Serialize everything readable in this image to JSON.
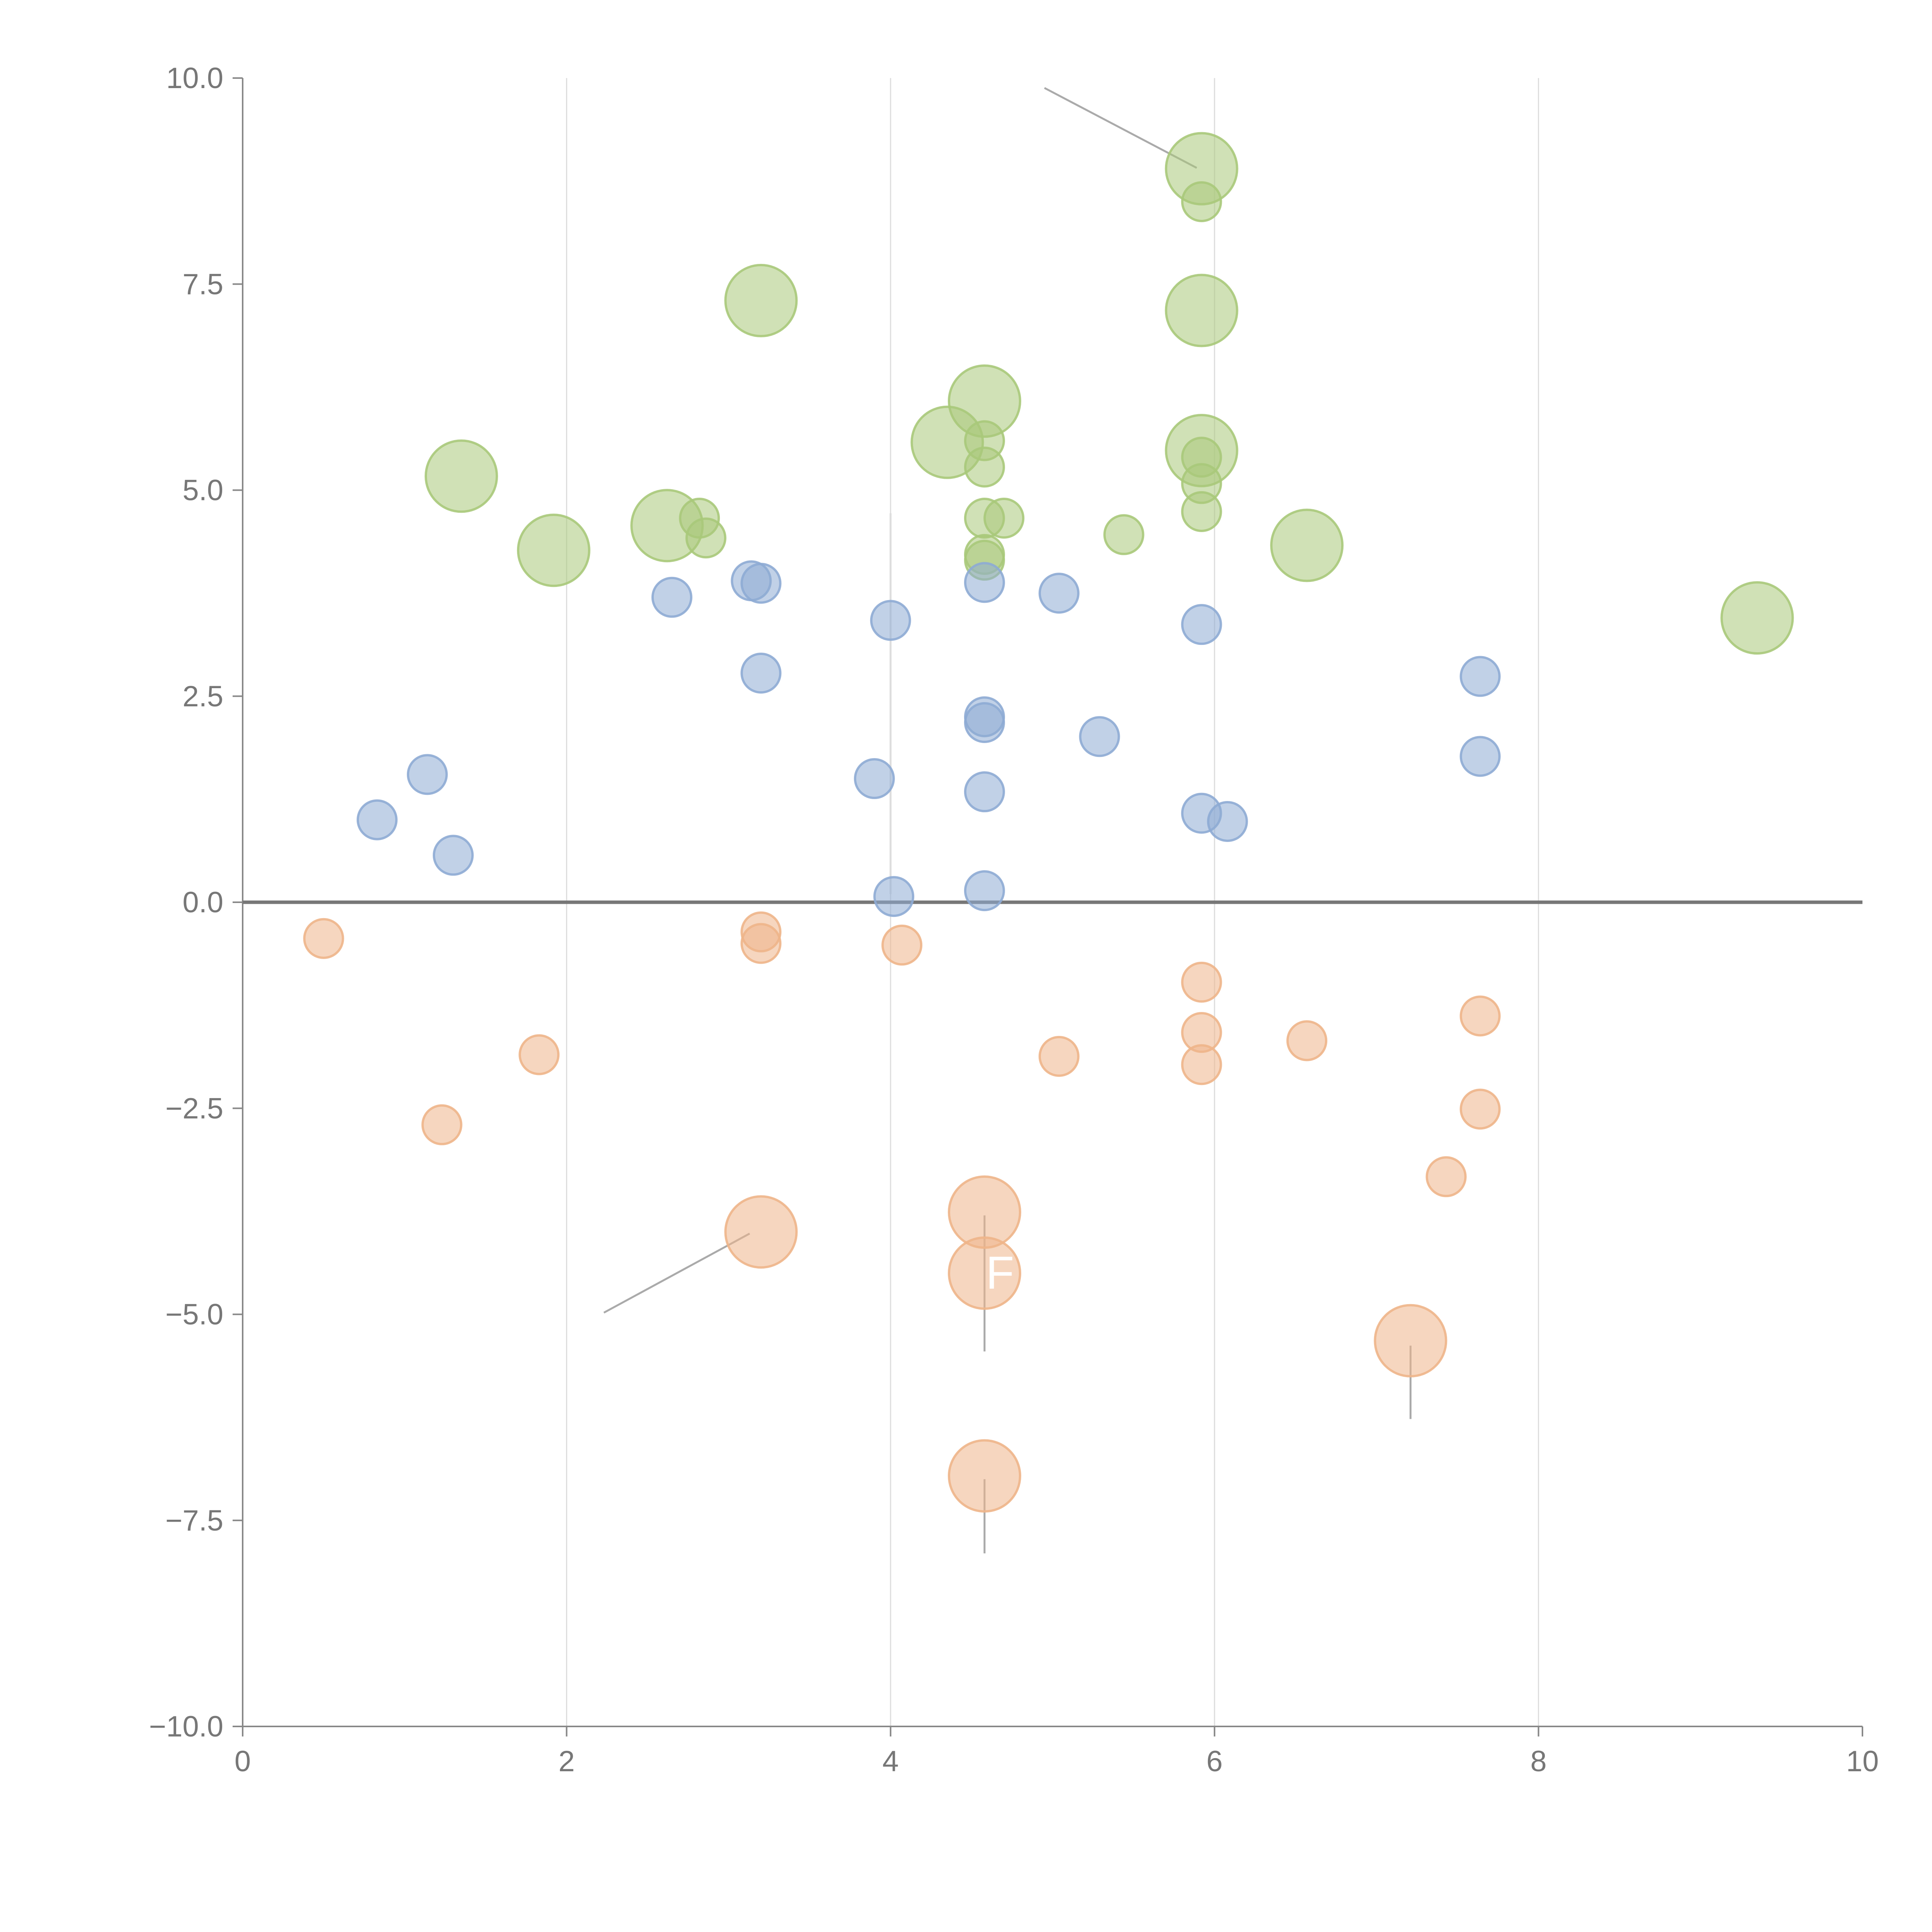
{
  "chart_data": {
    "type": "scatter",
    "title": "",
    "xlabel": "",
    "ylabel": "",
    "xlim": [
      0,
      10
    ],
    "ylim": [
      -10,
      10
    ],
    "x_ticks": [
      0,
      2,
      4,
      6,
      8,
      10
    ],
    "y_ticks": [
      -10,
      -7.5,
      -5,
      -2.5,
      0,
      2.5,
      5,
      7.5,
      10
    ],
    "x_tick_labels": [
      "0",
      "2",
      "4",
      "6",
      "8",
      "10"
    ],
    "y_tick_labels": [
      "−10.0",
      "−7.5",
      "−5.0",
      "−2.5",
      "0.0",
      "2.5",
      "5.0",
      "7.5",
      "10.0"
    ],
    "vertical_gridlines_at": [
      2,
      4,
      6,
      8
    ],
    "zero_line": 0,
    "series": [
      {
        "name": "green",
        "color": "#a9c97a",
        "points": [
          {
            "x": 5.92,
            "y": 8.9,
            "size": "large"
          },
          {
            "x": 5.92,
            "y": 8.5,
            "size": "small"
          },
          {
            "x": 3.2,
            "y": 7.3,
            "size": "large"
          },
          {
            "x": 5.92,
            "y": 7.18,
            "size": "large"
          },
          {
            "x": 4.58,
            "y": 6.08,
            "size": "large"
          },
          {
            "x": 4.35,
            "y": 5.58,
            "size": "large"
          },
          {
            "x": 4.58,
            "y": 5.6,
            "size": "small"
          },
          {
            "x": 5.92,
            "y": 5.48,
            "size": "large"
          },
          {
            "x": 5.92,
            "y": 5.4,
            "size": "small"
          },
          {
            "x": 4.58,
            "y": 5.28,
            "size": "small"
          },
          {
            "x": 1.35,
            "y": 5.17,
            "size": "large"
          },
          {
            "x": 5.92,
            "y": 5.08,
            "size": "small"
          },
          {
            "x": 5.92,
            "y": 4.74,
            "size": "small"
          },
          {
            "x": 2.82,
            "y": 4.66,
            "size": "small"
          },
          {
            "x": 4.58,
            "y": 4.66,
            "size": "small"
          },
          {
            "x": 4.7,
            "y": 4.66,
            "size": "small"
          },
          {
            "x": 2.62,
            "y": 4.57,
            "size": "large"
          },
          {
            "x": 5.44,
            "y": 4.46,
            "size": "small"
          },
          {
            "x": 2.86,
            "y": 4.42,
            "size": "small"
          },
          {
            "x": 6.57,
            "y": 4.33,
            "size": "large"
          },
          {
            "x": 1.92,
            "y": 4.27,
            "size": "large"
          },
          {
            "x": 4.58,
            "y": 4.22,
            "size": "small"
          },
          {
            "x": 4.58,
            "y": 4.15,
            "size": "small"
          },
          {
            "x": 9.35,
            "y": 3.45,
            "size": "large"
          }
        ]
      },
      {
        "name": "blue",
        "color": "#8eabd4",
        "points": [
          {
            "x": 3.14,
            "y": 3.9,
            "size": "small"
          },
          {
            "x": 3.2,
            "y": 3.87,
            "size": "small"
          },
          {
            "x": 4.58,
            "y": 3.88,
            "size": "small"
          },
          {
            "x": 5.04,
            "y": 3.75,
            "size": "small"
          },
          {
            "x": 2.65,
            "y": 3.7,
            "size": "small"
          },
          {
            "x": 4.0,
            "y": 3.42,
            "size": "small"
          },
          {
            "x": 5.92,
            "y": 3.37,
            "size": "small"
          },
          {
            "x": 3.2,
            "y": 2.78,
            "size": "small"
          },
          {
            "x": 7.64,
            "y": 2.74,
            "size": "small"
          },
          {
            "x": 4.58,
            "y": 2.25,
            "size": "small"
          },
          {
            "x": 4.58,
            "y": 2.18,
            "size": "small"
          },
          {
            "x": 5.29,
            "y": 2.01,
            "size": "small"
          },
          {
            "x": 7.64,
            "y": 1.77,
            "size": "small"
          },
          {
            "x": 1.14,
            "y": 1.55,
            "size": "small"
          },
          {
            "x": 3.9,
            "y": 1.5,
            "size": "small"
          },
          {
            "x": 4.58,
            "y": 1.34,
            "size": "small"
          },
          {
            "x": 5.92,
            "y": 1.08,
            "size": "small"
          },
          {
            "x": 0.83,
            "y": 1.0,
            "size": "small"
          },
          {
            "x": 6.08,
            "y": 0.98,
            "size": "small"
          },
          {
            "x": 1.3,
            "y": 0.57,
            "size": "small"
          },
          {
            "x": 4.58,
            "y": 0.14,
            "size": "small"
          },
          {
            "x": 4.02,
            "y": 0.07,
            "size": "small"
          }
        ]
      },
      {
        "name": "orange",
        "color": "#eeb58a",
        "points": [
          {
            "x": 3.2,
            "y": -0.36,
            "size": "small"
          },
          {
            "x": 0.5,
            "y": -0.44,
            "size": "small"
          },
          {
            "x": 3.2,
            "y": -0.5,
            "size": "small"
          },
          {
            "x": 4.07,
            "y": -0.52,
            "size": "small"
          },
          {
            "x": 5.92,
            "y": -0.97,
            "size": "small"
          },
          {
            "x": 7.64,
            "y": -1.38,
            "size": "small"
          },
          {
            "x": 5.92,
            "y": -1.58,
            "size": "small"
          },
          {
            "x": 6.57,
            "y": -1.68,
            "size": "small"
          },
          {
            "x": 1.83,
            "y": -1.85,
            "size": "small"
          },
          {
            "x": 5.04,
            "y": -1.87,
            "size": "small"
          },
          {
            "x": 5.92,
            "y": -1.97,
            "size": "small"
          },
          {
            "x": 7.64,
            "y": -2.51,
            "size": "small"
          },
          {
            "x": 1.23,
            "y": -2.7,
            "size": "small"
          },
          {
            "x": 7.43,
            "y": -3.33,
            "size": "small"
          },
          {
            "x": 4.58,
            "y": -3.76,
            "size": "large"
          },
          {
            "x": 3.2,
            "y": -4.0,
            "size": "large"
          },
          {
            "x": 4.58,
            "y": -4.5,
            "size": "large",
            "label": "F"
          },
          {
            "x": 7.21,
            "y": -5.32,
            "size": "large"
          },
          {
            "x": 4.58,
            "y": -6.96,
            "size": "large"
          }
        ]
      }
    ],
    "annotation_leaders": [
      {
        "from": [
          5.89,
          8.91
        ],
        "to": [
          4.95,
          9.88
        ],
        "color": "#aaaaaa"
      },
      {
        "from": [
          3.13,
          -4.02
        ],
        "to": [
          2.23,
          -4.98
        ],
        "color": "#aaaaaa"
      },
      {
        "from": [
          4.58,
          -3.8
        ],
        "to": [
          4.58,
          -5.45
        ],
        "color": "#aaaaaa"
      },
      {
        "from": [
          7.21,
          -5.38
        ],
        "to": [
          7.21,
          -6.27
        ],
        "color": "#aaaaaa"
      },
      {
        "from": [
          4.58,
          -7.0
        ],
        "to": [
          4.58,
          -7.9
        ],
        "color": "#aaaaaa"
      },
      {
        "from": [
          4.0,
          4.72
        ],
        "to": [
          4.0,
          0.1
        ],
        "color": "#dddddd"
      }
    ]
  }
}
